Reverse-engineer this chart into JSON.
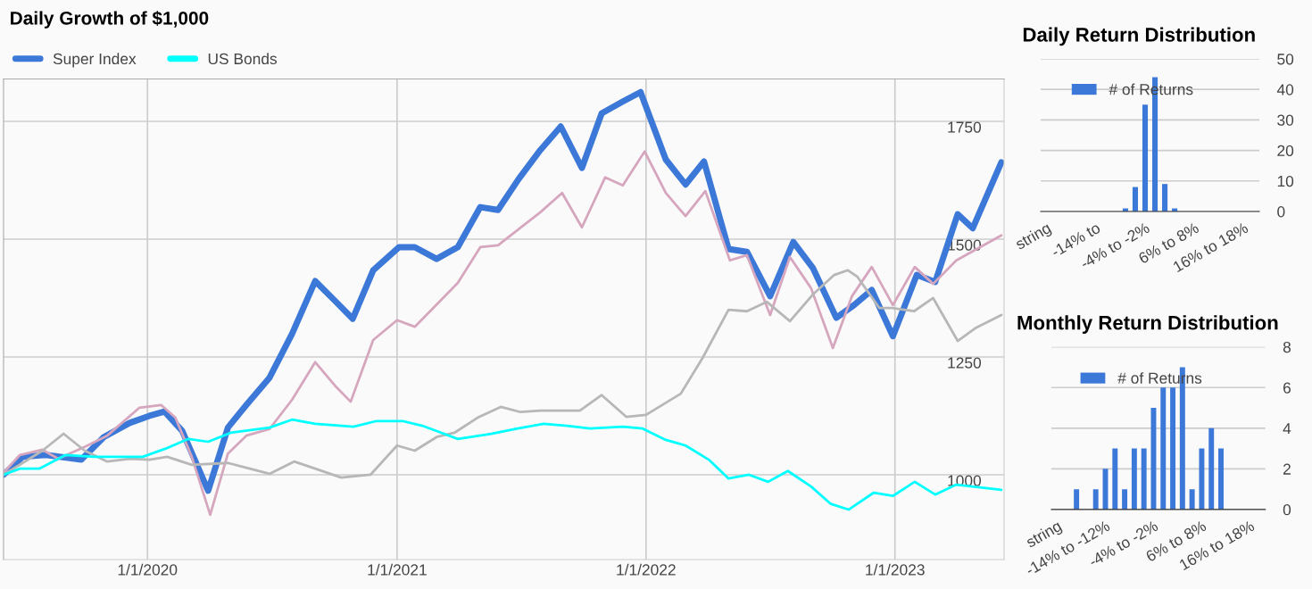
{
  "chart_data": [
    {
      "type": "line",
      "title": "Daily Growth of $1,000",
      "legend": "top left",
      "grid": true,
      "xlim": [
        "2019-06-04",
        "2023-06-10"
      ],
      "ylim": [
        820,
        1840
      ],
      "xticks": [
        {
          "value": "2020-01-01",
          "label": "1/1/2020"
        },
        {
          "value": "2021-01-01",
          "label": "1/1/2021"
        },
        {
          "value": "2022-01-01",
          "label": "1/1/2022"
        },
        {
          "value": "2023-01-01",
          "label": "1/1/2023"
        }
      ],
      "yticks": [
        1000,
        1250,
        1500,
        1750
      ],
      "series": [
        {
          "name": "Super Index",
          "color": "#3c78d8",
          "x": [
            "2019-06-04",
            "2019-07-02",
            "2019-08-05",
            "2019-09-26",
            "2019-10-29",
            "2019-12-06",
            "2020-01-04",
            "2020-01-26",
            "2020-02-21",
            "2020-03-30",
            "2020-04-28",
            "2020-05-25",
            "2020-06-28",
            "2020-07-31",
            "2020-09-03",
            "2020-10-02",
            "2020-10-28",
            "2020-11-27",
            "2021-01-04",
            "2021-01-27",
            "2021-02-28",
            "2021-03-31",
            "2021-05-03",
            "2021-05-29",
            "2021-06-28",
            "2021-07-30",
            "2021-08-29",
            "2021-09-29",
            "2021-10-28",
            "2021-11-28",
            "2021-12-24",
            "2022-01-30",
            "2022-02-28",
            "2022-03-27",
            "2022-05-02",
            "2022-05-29",
            "2022-07-02",
            "2022-08-05",
            "2022-09-03",
            "2022-10-07",
            "2022-11-02",
            "2022-11-28",
            "2022-12-29",
            "2023-02-02",
            "2023-03-01",
            "2023-04-03",
            "2023-04-25",
            "2023-06-06"
          ],
          "values": [
            1000,
            1038,
            1042,
            1032,
            1080,
            1110,
            1125,
            1134,
            1093,
            966,
            1100,
            1148,
            1206,
            1299,
            1411,
            1369,
            1331,
            1434,
            1483,
            1483,
            1458,
            1483,
            1568,
            1562,
            1627,
            1689,
            1739,
            1651,
            1767,
            1792,
            1812,
            1669,
            1616,
            1665,
            1479,
            1473,
            1379,
            1494,
            1438,
            1333,
            1360,
            1392,
            1294,
            1424,
            1409,
            1553,
            1523,
            1663
          ]
        },
        {
          "color": "#d5a6bd",
          "x": [
            "2019-06-04",
            "2019-06-28",
            "2019-07-31",
            "2019-08-23",
            "2019-10-01",
            "2019-11-03",
            "2019-12-20",
            "2020-01-21",
            "2020-02-11",
            "2020-03-06",
            "2020-04-02",
            "2020-04-28",
            "2020-05-25",
            "2020-06-28",
            "2020-07-31",
            "2020-09-03",
            "2020-10-02",
            "2020-10-25",
            "2020-11-27",
            "2021-01-01",
            "2021-01-27",
            "2021-03-31",
            "2021-05-03",
            "2021-05-29",
            "2021-07-30",
            "2021-08-31",
            "2021-09-29",
            "2021-11-02",
            "2021-11-28",
            "2021-12-30",
            "2022-01-30",
            "2022-02-28",
            "2022-03-29",
            "2022-05-04",
            "2022-05-29",
            "2022-07-02",
            "2022-07-31",
            "2022-08-31",
            "2022-10-02",
            "2022-10-30",
            "2022-11-28",
            "2022-12-29",
            "2023-01-30",
            "2023-02-26",
            "2023-04-01",
            "2023-06-06"
          ],
          "values": [
            1004,
            1042,
            1053,
            1034,
            1059,
            1083,
            1142,
            1148,
            1121,
            1038,
            915,
            1045,
            1083,
            1097,
            1159,
            1239,
            1189,
            1155,
            1286,
            1328,
            1314,
            1407,
            1483,
            1487,
            1557,
            1598,
            1525,
            1631,
            1614,
            1686,
            1598,
            1549,
            1602,
            1455,
            1466,
            1339,
            1462,
            1396,
            1269,
            1379,
            1441,
            1360,
            1441,
            1405,
            1455,
            1508
          ]
        },
        {
          "color": "#b7b7b7",
          "x": [
            "2019-06-04",
            "2019-07-31",
            "2019-08-31",
            "2019-10-01",
            "2019-11-03",
            "2019-12-06",
            "2020-01-04",
            "2020-01-30",
            "2020-03-06",
            "2020-04-28",
            "2020-05-30",
            "2020-06-28",
            "2020-08-03",
            "2020-09-03",
            "2020-10-11",
            "2020-11-23",
            "2021-01-01",
            "2021-01-27",
            "2021-02-28",
            "2021-03-26",
            "2021-04-29",
            "2021-06-02",
            "2021-07-01",
            "2021-07-30",
            "2021-09-26",
            "2021-10-28",
            "2021-12-03",
            "2022-01-01",
            "2022-02-21",
            "2022-03-25",
            "2022-05-02",
            "2022-05-29",
            "2022-06-27",
            "2022-07-31",
            "2022-09-03",
            "2022-10-04",
            "2022-10-24",
            "2022-11-07",
            "2022-12-09",
            "2022-12-28",
            "2023-01-29",
            "2023-02-26",
            "2023-04-03",
            "2023-04-30",
            "2023-06-06"
          ],
          "values": [
            1000,
            1051,
            1087,
            1051,
            1028,
            1034,
            1032,
            1038,
            1021,
            1025,
            1013,
            1002,
            1028,
            1013,
            994,
            1000,
            1062,
            1051,
            1080,
            1089,
            1121,
            1144,
            1133,
            1136,
            1136,
            1169,
            1123,
            1127,
            1172,
            1248,
            1350,
            1347,
            1367,
            1326,
            1383,
            1424,
            1434,
            1420,
            1354,
            1354,
            1347,
            1375,
            1284,
            1312,
            1339
          ]
        },
        {
          "name": "US Bonds",
          "color": "#00ffff",
          "x": [
            "2019-06-04",
            "2019-06-28",
            "2019-07-27",
            "2019-09-03",
            "2019-10-15",
            "2019-12-25",
            "2020-01-27",
            "2020-03-01",
            "2020-03-30",
            "2020-05-02",
            "2020-06-28",
            "2020-07-31",
            "2020-09-03",
            "2020-10-29",
            "2020-12-02",
            "2021-01-09",
            "2021-02-07",
            "2021-03-31",
            "2021-05-19",
            "2021-06-27",
            "2021-08-04",
            "2021-09-07",
            "2021-10-11",
            "2021-11-28",
            "2021-12-27",
            "2022-01-30",
            "2022-02-28",
            "2022-04-03",
            "2022-05-02",
            "2022-06-01",
            "2022-06-29",
            "2022-07-28",
            "2022-08-31",
            "2022-09-29",
            "2022-10-25",
            "2022-12-01",
            "2022-12-29",
            "2023-01-30",
            "2023-03-01",
            "2023-04-01",
            "2023-06-06"
          ],
          "values": [
            1000,
            1013,
            1013,
            1042,
            1038,
            1038,
            1055,
            1076,
            1070,
            1089,
            1100,
            1117,
            1108,
            1102,
            1114,
            1114,
            1104,
            1076,
            1087,
            1098,
            1108,
            1104,
            1098,
            1102,
            1098,
            1074,
            1062,
            1032,
            992,
            1000,
            985,
            1008,
            975,
            938,
            926,
            962,
            955,
            985,
            958,
            979,
            968
          ]
        }
      ]
    },
    {
      "type": "bar",
      "title": "Daily Return Distribution",
      "legend": "top",
      "grid": "y",
      "ylim": [
        0,
        50
      ],
      "yticks": [
        0,
        10,
        20,
        30,
        40,
        50
      ],
      "categories": [
        "string",
        null,
        null,
        null,
        null,
        "-14% to",
        null,
        null,
        null,
        null,
        "-4% to -2%",
        null,
        null,
        null,
        null,
        "6% to 8%",
        null,
        null,
        null,
        null,
        "16% to 18%",
        null
      ],
      "series": [
        {
          "name": "# of Returns",
          "color": "#3c78d8",
          "values": [
            0,
            0,
            0,
            0,
            0,
            0,
            0,
            0,
            1,
            8,
            35,
            44,
            9,
            1,
            0,
            0,
            0,
            0,
            0,
            0,
            0,
            0
          ]
        }
      ]
    },
    {
      "type": "bar",
      "title": "Monthly Return Distribution",
      "legend": "top",
      "grid": "y",
      "ylim": [
        0,
        8
      ],
      "yticks": [
        0,
        2,
        4,
        6,
        8
      ],
      "categories": [
        "string",
        null,
        null,
        null,
        null,
        "-14% to -12%",
        null,
        null,
        null,
        null,
        "-4% to -2%",
        null,
        null,
        null,
        null,
        "6% to 8%",
        null,
        null,
        null,
        null,
        "16% to 18%",
        null
      ],
      "series": [
        {
          "name": "# of Returns",
          "color": "#3c78d8",
          "values": [
            0,
            0,
            1,
            0,
            1,
            2,
            3,
            1,
            3,
            3,
            5,
            6,
            6,
            7,
            1,
            3,
            4,
            3,
            0,
            0,
            0,
            0
          ]
        }
      ]
    }
  ]
}
